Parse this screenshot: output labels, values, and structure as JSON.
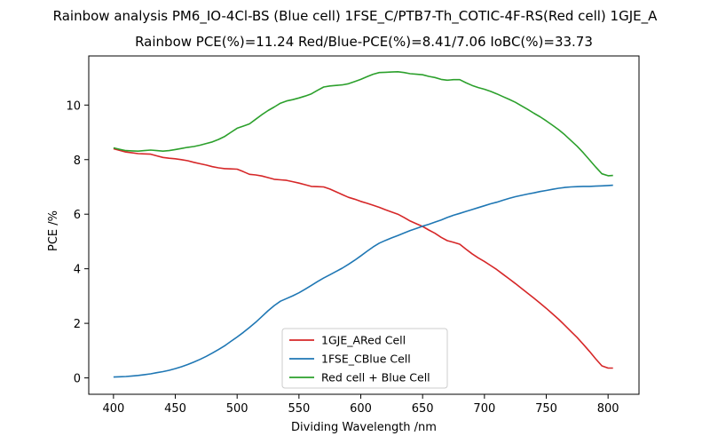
{
  "chart_data": {
    "type": "line",
    "suptitle": "Rainbow analysis PM6_IO-4Cl-BS (Blue cell) 1FSE_C/PTB7-Th_COTIC-4F-RS(Red cell) 1GJE_A",
    "title": "Rainbow PCE(%)=11.24  Red/Blue-PCE(%)=8.41/7.06   IoBC(%)=33.73",
    "xlabel": "Dividing Wavelength /nm",
    "ylabel": "PCE /%",
    "xlim": [
      380,
      825
    ],
    "ylim": [
      -0.6,
      11.8
    ],
    "xticks": [
      400,
      450,
      500,
      550,
      600,
      650,
      700,
      750,
      800
    ],
    "yticks": [
      0,
      2,
      4,
      6,
      8,
      10
    ],
    "grid": false,
    "legend_position": "lower-center",
    "series": [
      {
        "name": "1GJE_ARed Cell",
        "color": "#d62728",
        "x": [
          400,
          405,
          410,
          415,
          420,
          425,
          430,
          435,
          440,
          445,
          450,
          455,
          460,
          465,
          470,
          475,
          480,
          485,
          490,
          495,
          500,
          505,
          510,
          515,
          520,
          525,
          530,
          535,
          540,
          545,
          550,
          555,
          560,
          565,
          570,
          575,
          580,
          585,
          590,
          595,
          600,
          605,
          610,
          615,
          620,
          625,
          630,
          635,
          640,
          645,
          650,
          655,
          660,
          665,
          670,
          675,
          680,
          685,
          690,
          695,
          700,
          705,
          710,
          715,
          720,
          725,
          730,
          735,
          740,
          745,
          750,
          755,
          760,
          765,
          770,
          775,
          780,
          785,
          790,
          795,
          800,
          804
        ],
        "values": [
          8.4,
          8.34,
          8.28,
          8.25,
          8.22,
          8.21,
          8.2,
          8.14,
          8.08,
          8.05,
          8.03,
          8.0,
          7.96,
          7.9,
          7.85,
          7.8,
          7.74,
          7.7,
          7.67,
          7.66,
          7.65,
          7.56,
          7.46,
          7.44,
          7.4,
          7.34,
          7.28,
          7.26,
          7.24,
          7.19,
          7.14,
          7.08,
          7.02,
          7.01,
          7.0,
          6.92,
          6.82,
          6.72,
          6.62,
          6.55,
          6.47,
          6.4,
          6.33,
          6.25,
          6.16,
          6.08,
          6.0,
          5.88,
          5.75,
          5.65,
          5.55,
          5.42,
          5.3,
          5.15,
          5.03,
          4.97,
          4.9,
          4.72,
          4.55,
          4.4,
          4.27,
          4.12,
          3.97,
          3.8,
          3.63,
          3.46,
          3.28,
          3.1,
          2.92,
          2.74,
          2.55,
          2.35,
          2.15,
          1.93,
          1.7,
          1.48,
          1.23,
          0.97,
          0.7,
          0.44,
          0.36,
          0.36
        ]
      },
      {
        "name": "1FSE_CBlue Cell",
        "color": "#1f77b4",
        "x": [
          400,
          405,
          410,
          415,
          420,
          425,
          430,
          435,
          440,
          445,
          450,
          455,
          460,
          465,
          470,
          475,
          480,
          485,
          490,
          495,
          500,
          505,
          510,
          515,
          520,
          525,
          530,
          535,
          540,
          545,
          550,
          555,
          560,
          565,
          570,
          575,
          580,
          585,
          590,
          595,
          600,
          605,
          610,
          615,
          620,
          625,
          630,
          635,
          640,
          645,
          650,
          655,
          660,
          665,
          670,
          675,
          680,
          685,
          690,
          695,
          700,
          705,
          710,
          715,
          720,
          725,
          730,
          735,
          740,
          745,
          750,
          755,
          760,
          765,
          770,
          775,
          780,
          785,
          790,
          795,
          800,
          804
        ],
        "values": [
          0.03,
          0.04,
          0.05,
          0.07,
          0.09,
          0.12,
          0.15,
          0.19,
          0.23,
          0.28,
          0.34,
          0.41,
          0.49,
          0.58,
          0.68,
          0.79,
          0.91,
          1.04,
          1.18,
          1.34,
          1.5,
          1.67,
          1.85,
          2.04,
          2.25,
          2.46,
          2.65,
          2.81,
          2.91,
          3.01,
          3.12,
          3.25,
          3.39,
          3.53,
          3.66,
          3.78,
          3.9,
          4.02,
          4.16,
          4.31,
          4.47,
          4.64,
          4.8,
          4.94,
          5.04,
          5.13,
          5.22,
          5.31,
          5.4,
          5.48,
          5.56,
          5.63,
          5.71,
          5.79,
          5.88,
          5.96,
          6.03,
          6.1,
          6.17,
          6.24,
          6.31,
          6.38,
          6.44,
          6.51,
          6.58,
          6.64,
          6.69,
          6.74,
          6.78,
          6.83,
          6.87,
          6.91,
          6.95,
          6.98,
          7.0,
          7.01,
          7.02,
          7.02,
          7.03,
          7.04,
          7.05,
          7.06
        ]
      },
      {
        "name": "Red cell + Blue Cell",
        "color": "#2ca02c",
        "x": [
          400,
          405,
          410,
          415,
          420,
          425,
          430,
          435,
          440,
          445,
          450,
          455,
          460,
          465,
          470,
          475,
          480,
          485,
          490,
          495,
          500,
          505,
          510,
          515,
          520,
          525,
          530,
          535,
          540,
          545,
          550,
          555,
          560,
          565,
          570,
          575,
          580,
          585,
          590,
          595,
          600,
          605,
          610,
          615,
          620,
          625,
          630,
          635,
          640,
          645,
          650,
          655,
          660,
          665,
          670,
          675,
          680,
          685,
          690,
          695,
          700,
          705,
          710,
          715,
          720,
          725,
          730,
          735,
          740,
          745,
          750,
          755,
          760,
          765,
          770,
          775,
          780,
          785,
          790,
          795,
          800,
          804
        ],
        "values": [
          8.43,
          8.38,
          8.33,
          8.32,
          8.31,
          8.33,
          8.35,
          8.33,
          8.31,
          8.33,
          8.37,
          8.41,
          8.45,
          8.48,
          8.53,
          8.59,
          8.65,
          8.74,
          8.85,
          9.0,
          9.15,
          9.23,
          9.31,
          9.48,
          9.65,
          9.8,
          9.93,
          10.07,
          10.15,
          10.2,
          10.26,
          10.33,
          10.41,
          10.54,
          10.66,
          10.7,
          10.72,
          10.74,
          10.78,
          10.86,
          10.94,
          11.04,
          11.13,
          11.19,
          11.2,
          11.21,
          11.22,
          11.19,
          11.15,
          11.13,
          11.11,
          11.05,
          11.01,
          10.94,
          10.91,
          10.93,
          10.93,
          10.82,
          10.72,
          10.64,
          10.58,
          10.5,
          10.41,
          10.31,
          10.21,
          10.1,
          9.97,
          9.84,
          9.7,
          9.57,
          9.42,
          9.26,
          9.1,
          8.91,
          8.7,
          8.49,
          8.25,
          7.99,
          7.73,
          7.48,
          7.41,
          7.42
        ]
      }
    ]
  }
}
